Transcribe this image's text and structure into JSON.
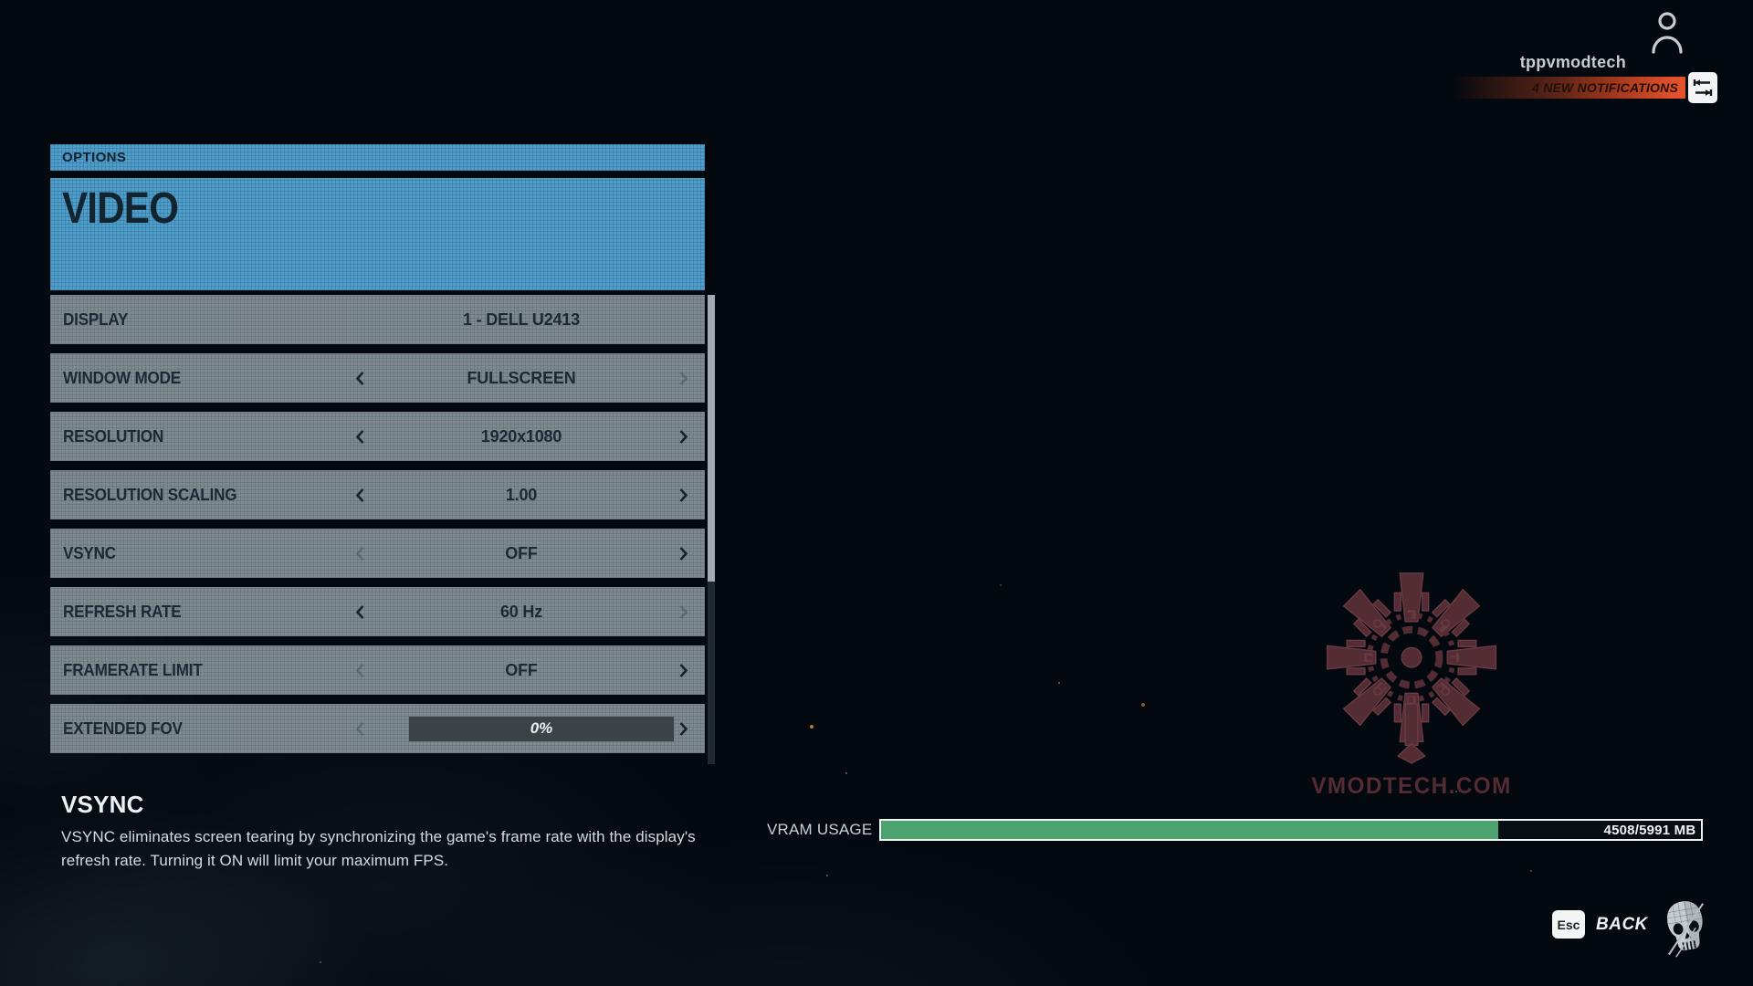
{
  "header": {
    "username": "tppvmodtech",
    "notification_text": "4 NEW NOTIFICATIONS"
  },
  "panel": {
    "options_label": "OPTIONS",
    "title": "VIDEO",
    "rows": [
      {
        "label": "DISPLAY",
        "value": "1 - DELL U2413",
        "type": "text",
        "left_arrow": "hidden",
        "right_arrow": "hidden"
      },
      {
        "label": "WINDOW MODE",
        "value": "FULLSCREEN",
        "type": "text",
        "left_arrow": "enabled",
        "right_arrow": "disabled"
      },
      {
        "label": "RESOLUTION",
        "value": "1920x1080",
        "type": "text",
        "left_arrow": "enabled",
        "right_arrow": "enabled"
      },
      {
        "label": "RESOLUTION SCALING",
        "value": "1.00",
        "type": "text",
        "left_arrow": "enabled",
        "right_arrow": "enabled"
      },
      {
        "label": "VSYNC",
        "value": "OFF",
        "type": "text",
        "left_arrow": "disabled",
        "right_arrow": "enabled"
      },
      {
        "label": "REFRESH RATE",
        "value": "60 Hz",
        "type": "text",
        "left_arrow": "enabled",
        "right_arrow": "disabled"
      },
      {
        "label": "FRAMERATE LIMIT",
        "value": "OFF",
        "type": "text",
        "left_arrow": "disabled",
        "right_arrow": "enabled"
      },
      {
        "label": "EXTENDED FOV",
        "value": "0%",
        "type": "slider",
        "slider_percent": 0,
        "left_arrow": "disabled",
        "right_arrow": "enabled"
      }
    ]
  },
  "description": {
    "title": "VSYNC",
    "body": "VSYNC eliminates screen tearing by synchronizing the game's frame rate with the display's refresh rate. Turning it ON will limit your maximum FPS."
  },
  "vram": {
    "label": "VRAM USAGE",
    "used_mb": 4508,
    "total_mb": 5991,
    "value_text": "4508/5991 MB",
    "percent": 75.2
  },
  "footer": {
    "key_label": "Esc",
    "action_label": "BACK"
  },
  "watermark": {
    "text": "VMODTECH.COM"
  },
  "colors": {
    "bg": "#04090f",
    "blue": "#4e9dcb",
    "row_gray": "#7f8a8e",
    "dark_text": "#17242e",
    "orange": "#e2512c",
    "green": "#4da36f",
    "maroon": "#5d323a"
  }
}
